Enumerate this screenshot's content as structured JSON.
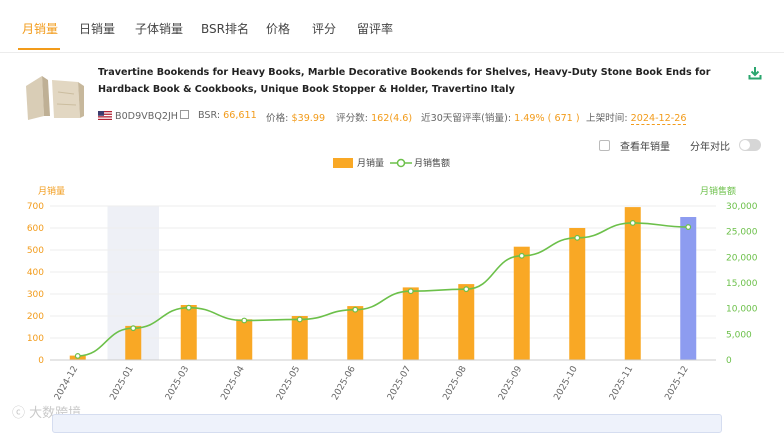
{
  "tabs": [
    {
      "label": "月销量",
      "active": true
    },
    {
      "label": "日销量"
    },
    {
      "label": "子体销量"
    },
    {
      "label": "BSR排名"
    },
    {
      "label": "价格"
    },
    {
      "label": "评分"
    },
    {
      "label": "留评率"
    }
  ],
  "product": {
    "title": "Travertine Bookends for Heavy Books, Marble Decorative Bookends for Shelves, Heavy-Duty Stone Book Ends for Hardback Book & Cookbooks, Unique Book Stopper & Holder, Travertino Italy",
    "asin": "B0D9VBQ2JH",
    "bsr_label": "BSR:",
    "bsr": "66,611",
    "price_label": "价格:",
    "price": "$39.99",
    "reviews_label": "评分数:",
    "reviews": "162(4.6)",
    "review_rate_label": "近30天留评率(销量):",
    "review_rate": "1.49% ( 671 )",
    "launch_label": "上架时间:",
    "launch_date": "2024-12-26"
  },
  "options": {
    "yearly_label": "查看年销量",
    "yoy_label": "分年对比",
    "yoy_on": false
  },
  "legend": {
    "bar_label": "月销量",
    "line_label": "月销售额"
  },
  "colors": {
    "accent": "#f29b1a",
    "bar": "#f9a825",
    "bar_highlight": "#8d9cf0",
    "line": "#6cc04a",
    "axis_left": "#f29b1a",
    "axis_right": "#6cc04a"
  },
  "watermark": "大数跨境",
  "chart_data": {
    "type": "bar",
    "categories": [
      "2024-12",
      "2025-01",
      "2025-03",
      "2025-04",
      "2025-05",
      "2025-06",
      "2025-07",
      "2025-08",
      "2025-09",
      "2025-10",
      "2025-11",
      "2025-12"
    ],
    "series": [
      {
        "name": "月销量",
        "type": "bar",
        "axis": "left",
        "values": [
          20,
          155,
          250,
          185,
          200,
          245,
          330,
          345,
          515,
          600,
          695,
          650
        ]
      },
      {
        "name": "月销售额",
        "type": "line",
        "axis": "right",
        "values": [
          800,
          6200,
          10200,
          7700,
          7900,
          9800,
          13400,
          13800,
          20300,
          23800,
          26700,
          25900
        ]
      }
    ],
    "ylabel": "月销量",
    "ylabel_right": "月销售额",
    "ylim": [
      0,
      700
    ],
    "ylim_right": [
      0,
      30000
    ],
    "yticks": [
      "0",
      "100",
      "200",
      "300",
      "400",
      "500",
      "600",
      "700"
    ],
    "yticks_right": [
      "0",
      "5,000",
      "10,000",
      "15,000",
      "20,000",
      "25,000",
      "30,000"
    ],
    "highlight_index": 11,
    "shaded_index": 1,
    "grid": true
  }
}
